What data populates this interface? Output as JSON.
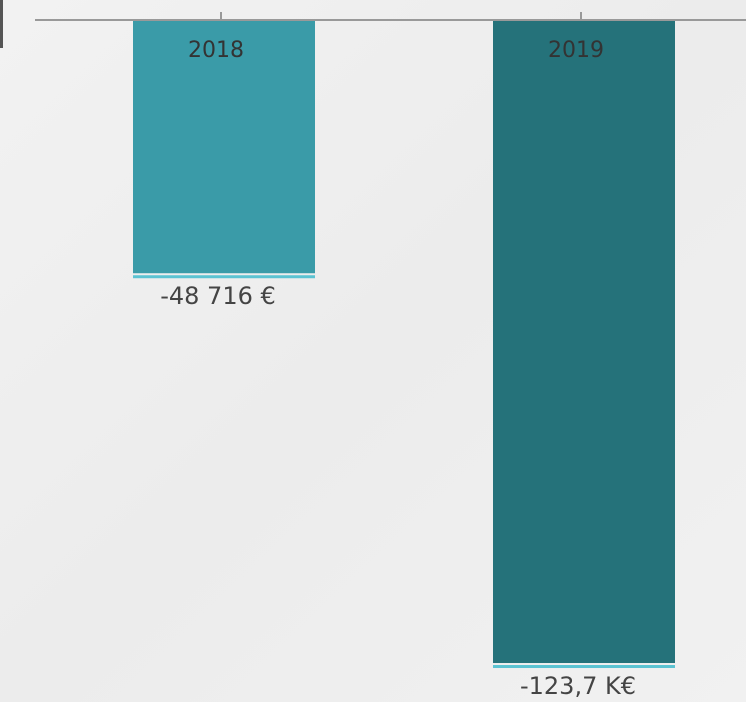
{
  "chart_data": {
    "type": "bar",
    "categories": [
      "2018",
      "2019"
    ],
    "values": [
      -48716,
      -123700
    ],
    "value_labels": [
      "-48 716 €",
      "-123,7 K€"
    ],
    "colors": [
      "#3a9ba8",
      "#25727a"
    ],
    "ylim": [
      -131200,
      0
    ]
  }
}
